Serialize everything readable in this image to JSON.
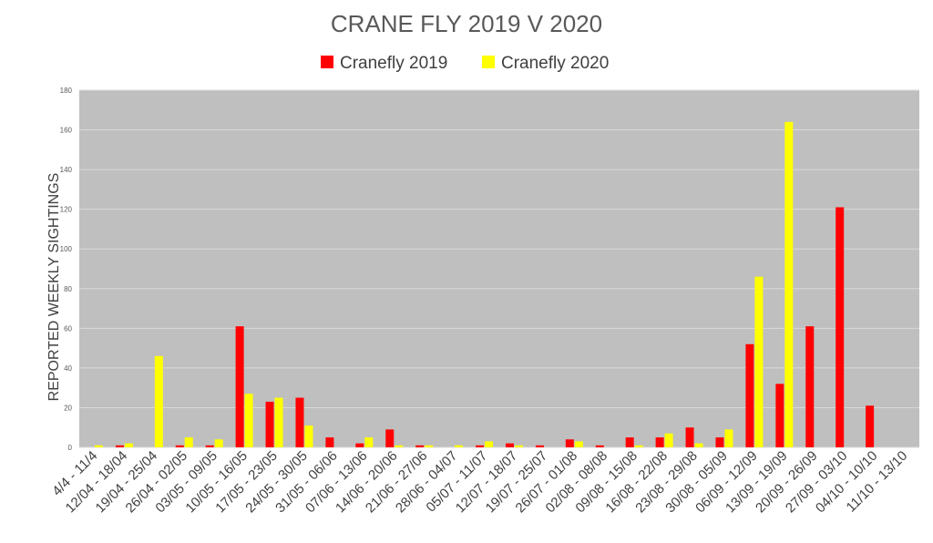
{
  "chart_data": {
    "type": "bar",
    "title": "CRANE FLY 2019 V 2020",
    "ylabel": "REPORTED WEEKLY SIGHTINGS",
    "xlabel": "",
    "ylim": [
      0,
      180
    ],
    "yticks": [
      0,
      20,
      40,
      60,
      80,
      100,
      120,
      140,
      160,
      180
    ],
    "grid": true,
    "legend_position": "top",
    "plot_background": "#bfbfbf",
    "categories": [
      "4/4 - 11/4",
      "12/04 - 18/04",
      "19/04 - 25/04",
      "26/04 - 02/05",
      "03/05 - 09/05",
      "10/05 - 16/05",
      "17/05 - 23/05",
      "24/05 - 30/05",
      "31/05 - 06/06",
      "07/06 - 13/06",
      "14/06 - 20/06",
      "21/06 - 27/06",
      "28/06 - 04/07",
      "05/07 - 11/07",
      "12/07 - 18/07",
      "19/07 - 25/07",
      "26/07 - 01/08",
      "02/08 - 08/08",
      "09/08 - 15/08",
      "16/08 - 22/08",
      "23/08 - 29/08",
      "30/08 - 05/09",
      "06/09 - 12/09",
      "13/09 - 19/09",
      "20/09 - 26/09",
      "27/09 - 03/10",
      "04/10 - 10/10",
      "11/10 - 13/10"
    ],
    "series": [
      {
        "name": "Cranefly 2019",
        "color": "#ff0000",
        "values": [
          0,
          1,
          0,
          1,
          1,
          61,
          23,
          25,
          5,
          2,
          9,
          1,
          0,
          1,
          2,
          1,
          4,
          1,
          5,
          5,
          10,
          5,
          52,
          32,
          61,
          121,
          21,
          0
        ]
      },
      {
        "name": "Cranefly 2020",
        "color": "#ffff00",
        "values": [
          1,
          2,
          46,
          5,
          4,
          27,
          25,
          11,
          0,
          5,
          1,
          1,
          1,
          3,
          1,
          0,
          3,
          0,
          1,
          7,
          2,
          9,
          86,
          164,
          0,
          0,
          0,
          0
        ]
      }
    ]
  }
}
